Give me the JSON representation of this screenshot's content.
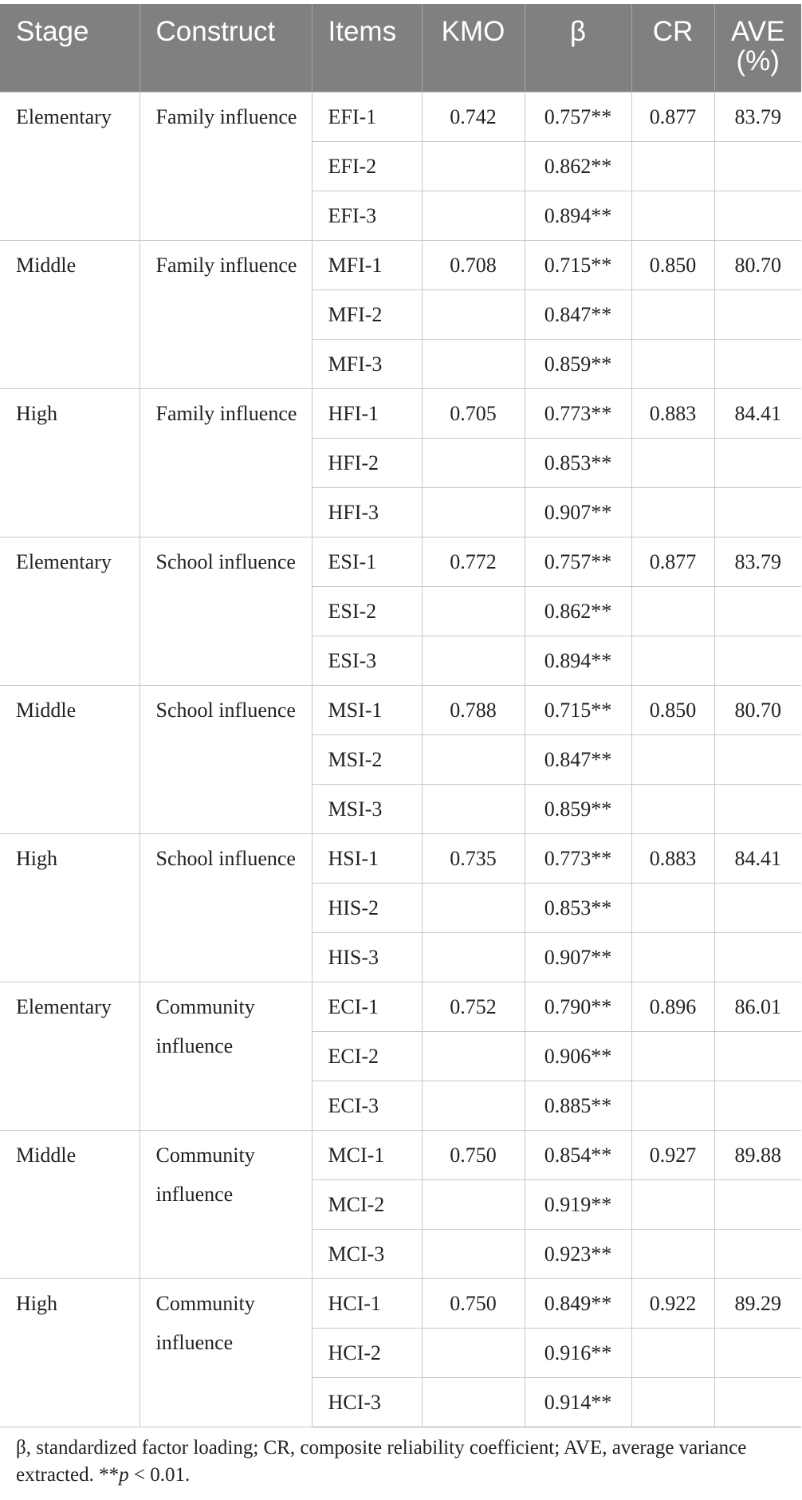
{
  "table": {
    "headers": {
      "stage": "Stage",
      "construct": "Construct",
      "items": "Items",
      "kmo": "KMO",
      "beta": "β",
      "cr": "CR",
      "ave": "AVE (%)"
    },
    "groups": [
      {
        "stage": "Elementary",
        "construct": "Family influence",
        "kmo": "0.742",
        "cr": "0.877",
        "ave": "83.79",
        "rows": [
          {
            "item": "EFI-1",
            "beta": "0.757**"
          },
          {
            "item": "EFI-2",
            "beta": "0.862**"
          },
          {
            "item": "EFI-3",
            "beta": "0.894**"
          }
        ]
      },
      {
        "stage": "Middle",
        "construct": "Family influence",
        "kmo": "0.708",
        "cr": "0.850",
        "ave": "80.70",
        "rows": [
          {
            "item": "MFI-1",
            "beta": "0.715**"
          },
          {
            "item": "MFI-2",
            "beta": "0.847**"
          },
          {
            "item": "MFI-3",
            "beta": "0.859**"
          }
        ]
      },
      {
        "stage": "High",
        "construct": "Family influence",
        "kmo": "0.705",
        "cr": "0.883",
        "ave": "84.41",
        "rows": [
          {
            "item": "HFI-1",
            "beta": "0.773**"
          },
          {
            "item": "HFI-2",
            "beta": "0.853**"
          },
          {
            "item": "HFI-3",
            "beta": "0.907**"
          }
        ]
      },
      {
        "stage": "Elementary",
        "construct": "School influence",
        "kmo": "0.772",
        "cr": "0.877",
        "ave": "83.79",
        "rows": [
          {
            "item": "ESI-1",
            "beta": "0.757**"
          },
          {
            "item": "ESI-2",
            "beta": "0.862**"
          },
          {
            "item": "ESI-3",
            "beta": "0.894**"
          }
        ]
      },
      {
        "stage": "Middle",
        "construct": "School influence",
        "kmo": "0.788",
        "cr": "0.850",
        "ave": "80.70",
        "rows": [
          {
            "item": "MSI-1",
            "beta": "0.715**"
          },
          {
            "item": "MSI-2",
            "beta": "0.847**"
          },
          {
            "item": "MSI-3",
            "beta": "0.859**"
          }
        ]
      },
      {
        "stage": "High",
        "construct": "School influence",
        "kmo": "0.735",
        "cr": "0.883",
        "ave": "84.41",
        "rows": [
          {
            "item": "HSI-1",
            "beta": "0.773**"
          },
          {
            "item": "HIS-2",
            "beta": "0.853**"
          },
          {
            "item": "HIS-3",
            "beta": "0.907**"
          }
        ]
      },
      {
        "stage": "Elementary",
        "construct": "Community influence",
        "kmo": "0.752",
        "cr": "0.896",
        "ave": "86.01",
        "rows": [
          {
            "item": "ECI-1",
            "beta": "0.790**"
          },
          {
            "item": "ECI-2",
            "beta": "0.906**"
          },
          {
            "item": "ECI-3",
            "beta": "0.885**"
          }
        ]
      },
      {
        "stage": "Middle",
        "construct": "Community influence",
        "kmo": "0.750",
        "cr": "0.927",
        "ave": "89.88",
        "rows": [
          {
            "item": "MCI-1",
            "beta": "0.854**"
          },
          {
            "item": "MCI-2",
            "beta": "0.919**"
          },
          {
            "item": "MCI-3",
            "beta": "0.923**"
          }
        ]
      },
      {
        "stage": "High",
        "construct": "Community influence",
        "kmo": "0.750",
        "cr": "0.922",
        "ave": "89.29",
        "rows": [
          {
            "item": "HCI-1",
            "beta": "0.849**"
          },
          {
            "item": "HCI-2",
            "beta": "0.916**"
          },
          {
            "item": "HCI-3",
            "beta": "0.914**"
          }
        ]
      }
    ]
  },
  "footnote": {
    "main": "β, standardized factor loading; CR, composite reliability coefficient; AVE, average variance extracted. **",
    "p_symbol": "p",
    "threshold": " < 0.01."
  }
}
